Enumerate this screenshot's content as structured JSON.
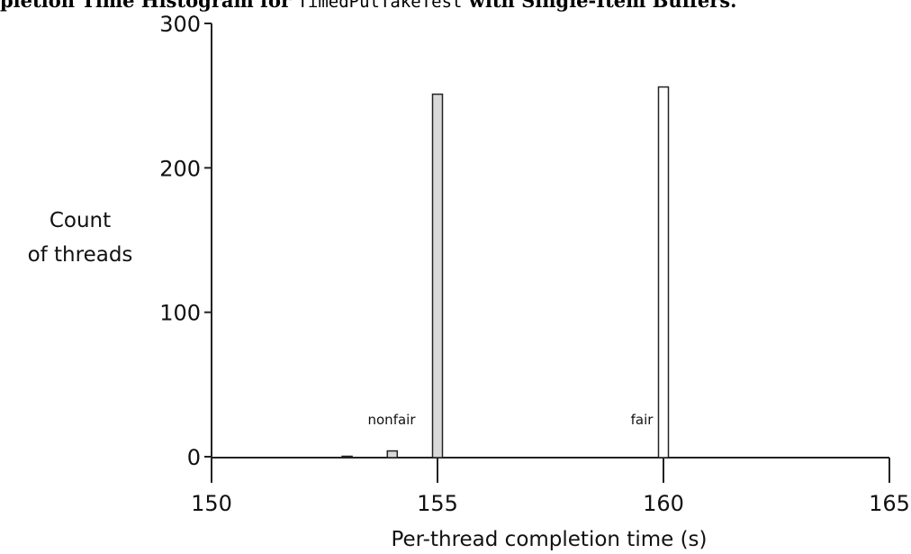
{
  "chart_data": {
    "type": "bar",
    "title": {
      "prefix": "pletion Time Histogram for ",
      "code": "TimedPutTakeTest",
      "suffix": " with Single-Item Buffers."
    },
    "xlabel": "Per-thread completion time (s)",
    "ylabel": [
      "Count",
      "of threads"
    ],
    "xlim": [
      150,
      165
    ],
    "ylim": [
      0,
      300
    ],
    "xticks": [
      "150",
      "155",
      "160",
      "165"
    ],
    "yticks": [
      "0",
      "100",
      "200",
      "300"
    ],
    "grid": false,
    "series": [
      {
        "name": "nonfair",
        "color": "#d9d9d9",
        "points": [
          {
            "x": 153,
            "y": 0
          },
          {
            "x": 154,
            "y": 4
          },
          {
            "x": 155,
            "y": 251
          }
        ]
      },
      {
        "name": "fair",
        "color": "#ffffff",
        "points": [
          {
            "x": 160,
            "y": 256
          }
        ]
      }
    ]
  }
}
